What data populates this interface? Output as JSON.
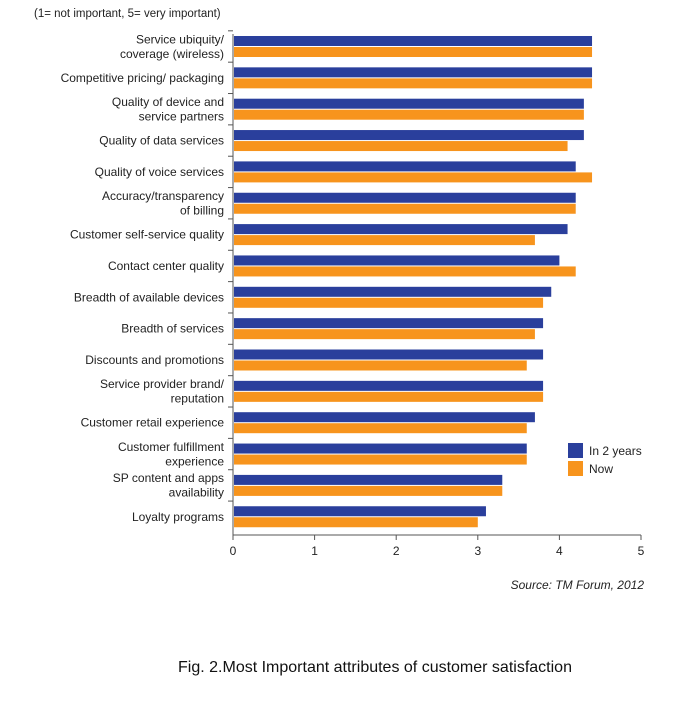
{
  "chart_data": {
    "type": "bar",
    "orientation": "horizontal",
    "subtitle": "(1= not important, 5= very important)",
    "categories": [
      [
        "Service ubiquity/",
        "coverage (wireless)"
      ],
      [
        "Competitive pricing/ packaging"
      ],
      [
        "Quality of device and",
        "service partners"
      ],
      [
        "Quality of data services"
      ],
      [
        "Quality of voice services"
      ],
      [
        "Accuracy/transparency",
        "of billing"
      ],
      [
        "Customer self-service quality"
      ],
      [
        "Contact center quality"
      ],
      [
        "Breadth of available devices"
      ],
      [
        "Breadth of services"
      ],
      [
        "Discounts and promotions"
      ],
      [
        "Service provider brand/",
        "reputation"
      ],
      [
        "Customer retail experience"
      ],
      [
        "Customer fulfillment",
        "experience"
      ],
      [
        "SP content and apps",
        "availability"
      ],
      [
        "Loyalty programs"
      ]
    ],
    "series": [
      {
        "name": "In 2 years",
        "color": "#2a3f9c",
        "values": [
          4.4,
          4.4,
          4.3,
          4.3,
          4.2,
          4.2,
          4.1,
          4.0,
          3.9,
          3.8,
          3.8,
          3.8,
          3.7,
          3.6,
          3.3,
          3.1
        ]
      },
      {
        "name": "Now",
        "color": "#f7941d",
        "values": [
          4.4,
          4.4,
          4.3,
          4.1,
          4.4,
          4.2,
          3.7,
          4.2,
          3.8,
          3.7,
          3.6,
          3.8,
          3.6,
          3.6,
          3.3,
          3.0
        ]
      }
    ],
    "xlim": [
      0,
      5
    ],
    "xticks": [
      "0",
      "1",
      "2",
      "3",
      "4",
      "5"
    ],
    "grid": false,
    "legend_position": "bottom-right",
    "source": "Source: TM Forum, 2012"
  },
  "caption": "Fig. 2.Most Important attributes of customer satisfaction"
}
